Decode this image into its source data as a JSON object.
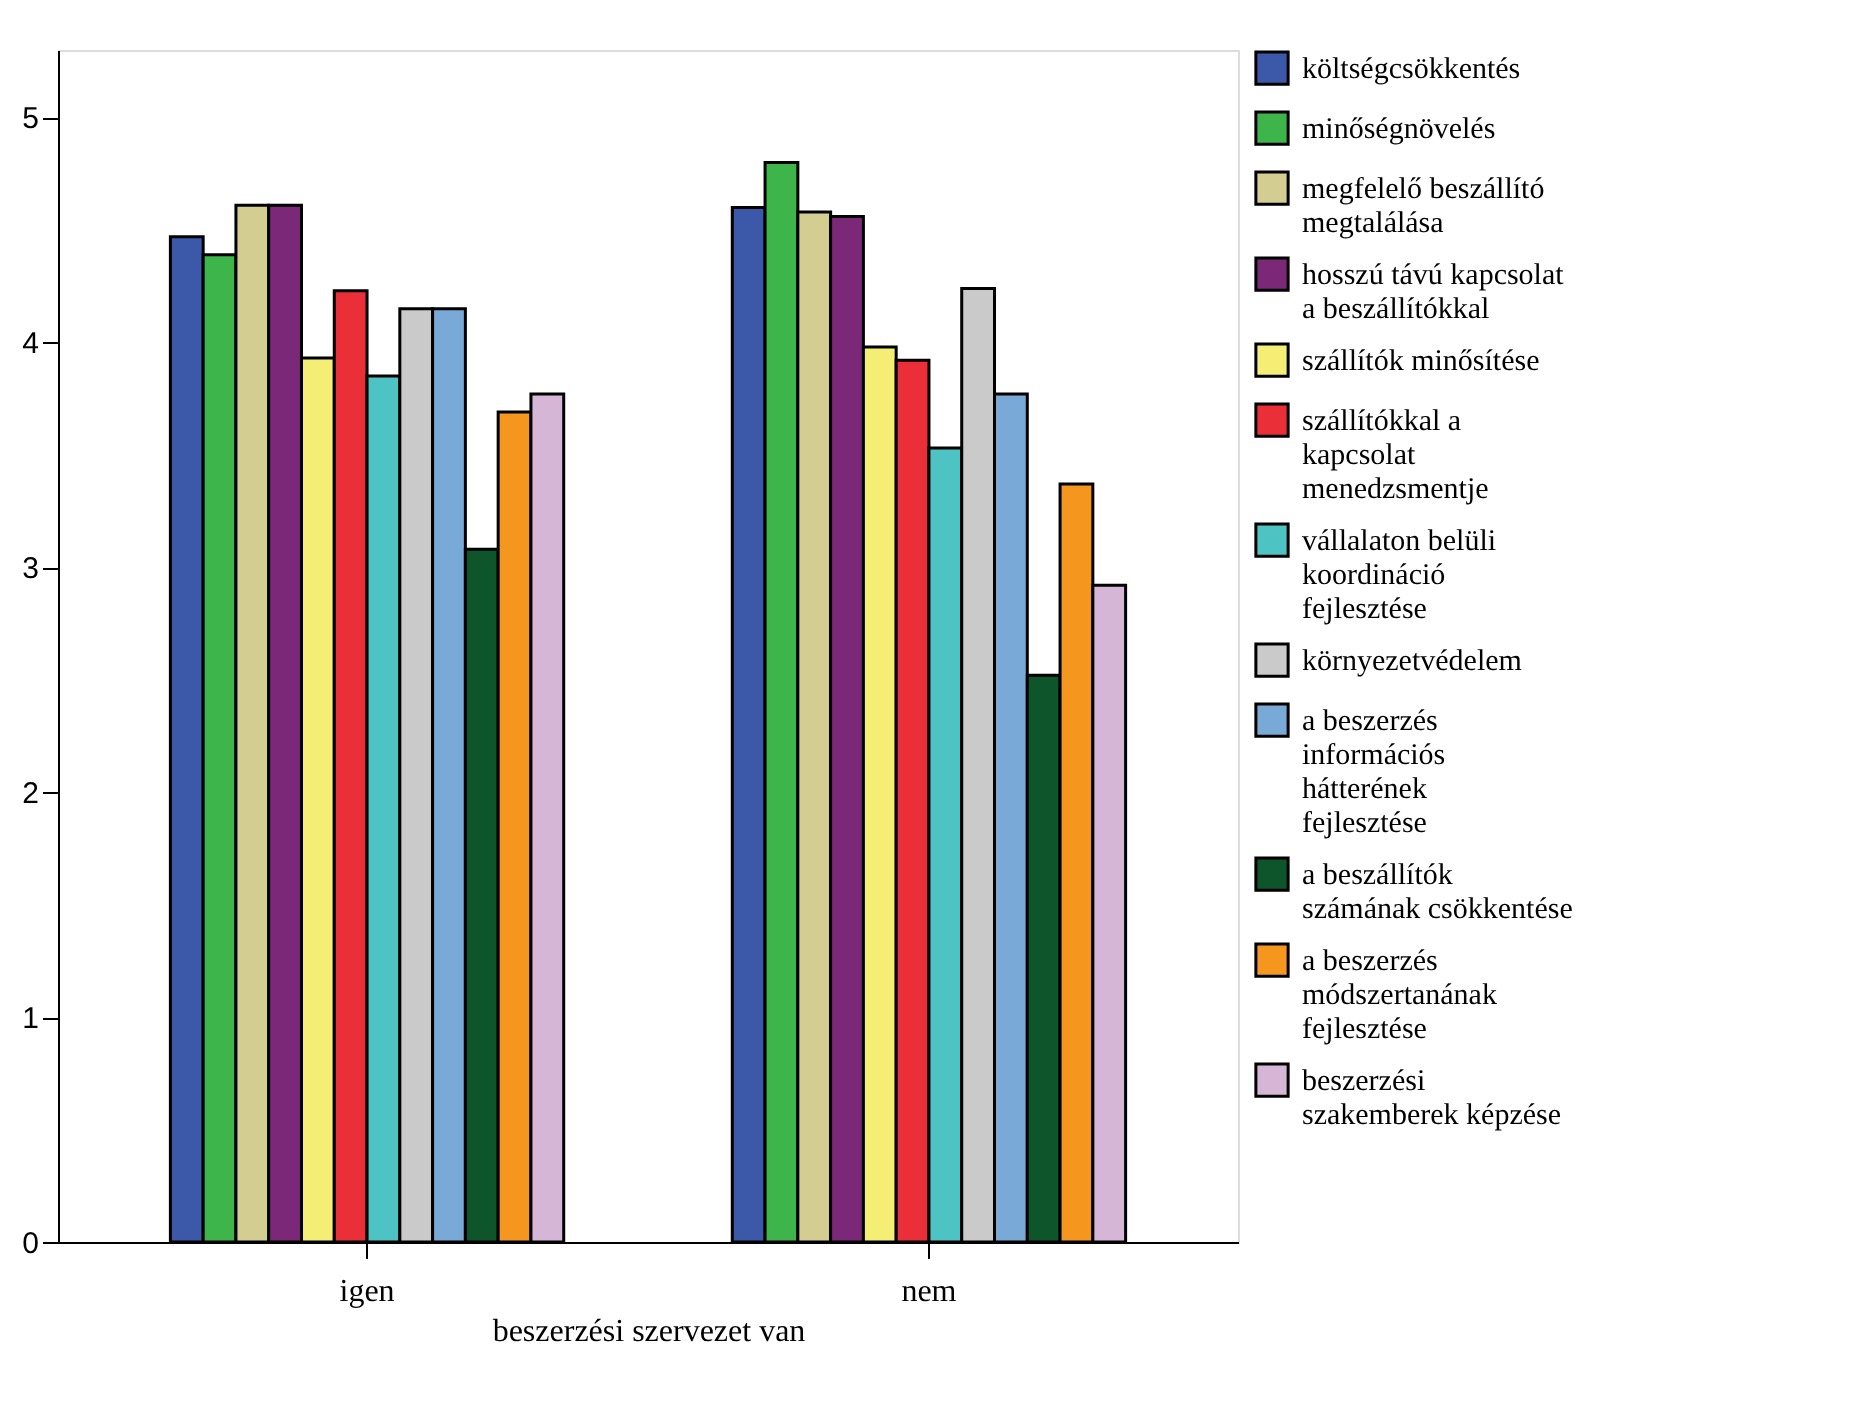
{
  "chart_data": {
    "type": "bar",
    "xlabel": "beszerzési szervezet van",
    "categories": [
      "igen",
      "nem"
    ],
    "series": [
      {
        "name": "költségcsökkentés",
        "color": "#3c58a8",
        "values": [
          4.47,
          4.6
        ]
      },
      {
        "name": "minőségnövelés",
        "color": "#3db54a",
        "values": [
          4.39,
          4.8
        ]
      },
      {
        "name": "megfelelő beszállító megtalálása",
        "color": "#d3cd92",
        "values": [
          4.61,
          4.58
        ]
      },
      {
        "name": "hosszú távú kapcsolat a beszállítókkal",
        "color": "#7b2879",
        "values": [
          4.61,
          4.56
        ]
      },
      {
        "name": "szállítók minősítése",
        "color": "#f4ee75",
        "values": [
          3.93,
          3.98
        ]
      },
      {
        "name": "szállítókkal a kapcsolat menedzsmentje",
        "color": "#eb2f38",
        "values": [
          4.23,
          3.92
        ]
      },
      {
        "name": "vállalaton belüli koordináció fejlesztése",
        "color": "#4dc3c4",
        "values": [
          3.85,
          3.53
        ]
      },
      {
        "name": "környezetvédelem",
        "color": "#cacaca",
        "values": [
          4.15,
          4.24
        ]
      },
      {
        "name": "a beszerzés információs hátterének fejlesztése",
        "color": "#79a9d6",
        "values": [
          4.15,
          3.77
        ]
      },
      {
        "name": "a beszállítók számának csökkentése",
        "color": "#0e552c",
        "values": [
          3.08,
          2.52
        ]
      },
      {
        "name": "a beszerzés módszertanának fejlesztése",
        "color": "#f5971f",
        "values": [
          3.69,
          3.37
        ]
      },
      {
        "name": "beszerzési szakemberek képzése",
        "color": "#d6b6d6",
        "values": [
          3.77,
          2.92
        ]
      }
    ],
    "ylim": [
      0,
      5.3
    ],
    "yticks": [
      0,
      1,
      2,
      3,
      4,
      5
    ],
    "legend": "right"
  }
}
